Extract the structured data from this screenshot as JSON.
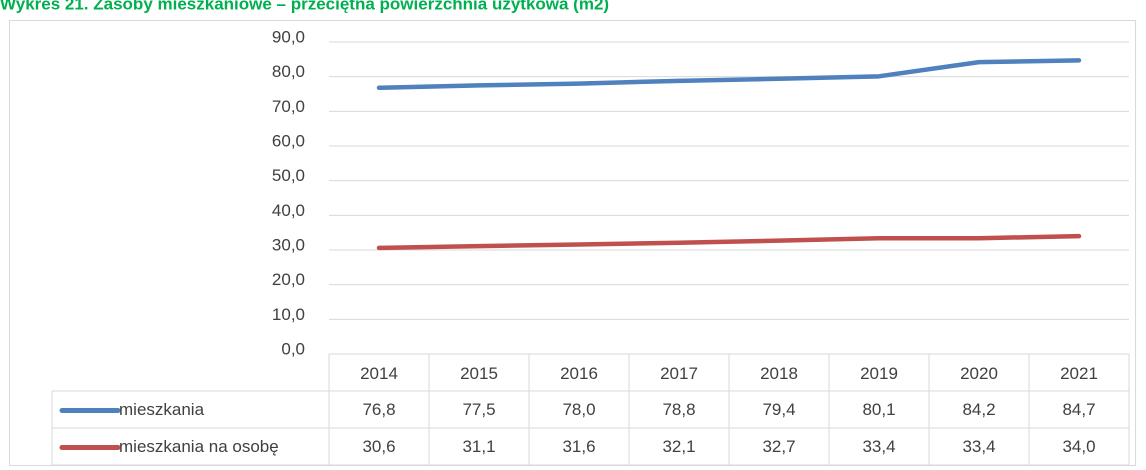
{
  "chart_data": {
    "type": "line",
    "title": "Wykres 21. Zasoby mieszkaniowe – przeciętna powierzchnia użytkowa (m2)",
    "categories": [
      "2014",
      "2015",
      "2016",
      "2017",
      "2018",
      "2019",
      "2020",
      "2021"
    ],
    "series": [
      {
        "name": "mieszkania",
        "color": "#4f81bd",
        "values": [
          76.8,
          77.5,
          78.0,
          78.8,
          79.4,
          80.1,
          84.2,
          84.7
        ],
        "value_labels": [
          "76,8",
          "77,5",
          "78,0",
          "78,8",
          "79,4",
          "80,1",
          "84,2",
          "84,7"
        ]
      },
      {
        "name": "mieszkania na osobę",
        "color": "#c0504d",
        "values": [
          30.6,
          31.1,
          31.6,
          32.1,
          32.7,
          33.4,
          33.4,
          34.0
        ],
        "value_labels": [
          "30,6",
          "31,1",
          "31,6",
          "32,1",
          "32,7",
          "33,4",
          "33,4",
          "34,0"
        ]
      }
    ],
    "ylim": [
      0,
      90
    ],
    "yticks": [
      {
        "value": 0,
        "label": "0,0"
      },
      {
        "value": 10,
        "label": "10,0"
      },
      {
        "value": 20,
        "label": "20,0"
      },
      {
        "value": 30,
        "label": "30,0"
      },
      {
        "value": 40,
        "label": "40,0"
      },
      {
        "value": 50,
        "label": "50,0"
      },
      {
        "value": 60,
        "label": "60,0"
      },
      {
        "value": 70,
        "label": "70,0"
      },
      {
        "value": 80,
        "label": "80,0"
      },
      {
        "value": 90,
        "label": "90,0"
      }
    ],
    "grid": true,
    "title_color": "#00b050"
  }
}
